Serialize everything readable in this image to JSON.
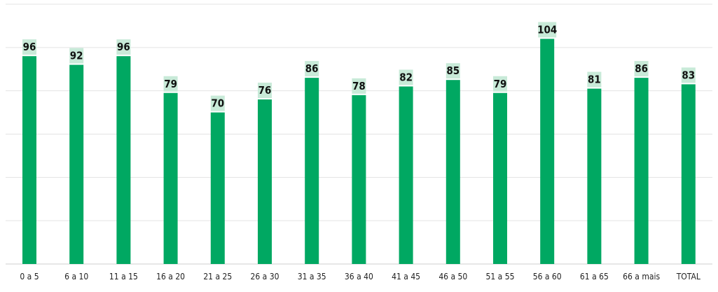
{
  "chart_data": {
    "type": "bar",
    "title": "",
    "xlabel": "",
    "ylabel": "",
    "categories": [
      "0 a 5",
      "6 a 10",
      "11 a 15",
      "16 a 20",
      "21 a 25",
      "26 a 30",
      "31 a 35",
      "36 a 40",
      "41 a 45",
      "46 a 50",
      "51 a 55",
      "56 a 60",
      "61 a 65",
      "66 a mais",
      "TOTAL"
    ],
    "values": [
      96,
      92,
      96,
      79,
      70,
      76,
      86,
      78,
      82,
      85,
      79,
      104,
      81,
      86,
      83
    ],
    "ylim": [
      0,
      120
    ],
    "grid": true,
    "legend": "none",
    "data_labels": true,
    "colors": {
      "bar": "#00a862",
      "label_background": "#c8ead8",
      "grid": "#e3e3e3"
    }
  }
}
